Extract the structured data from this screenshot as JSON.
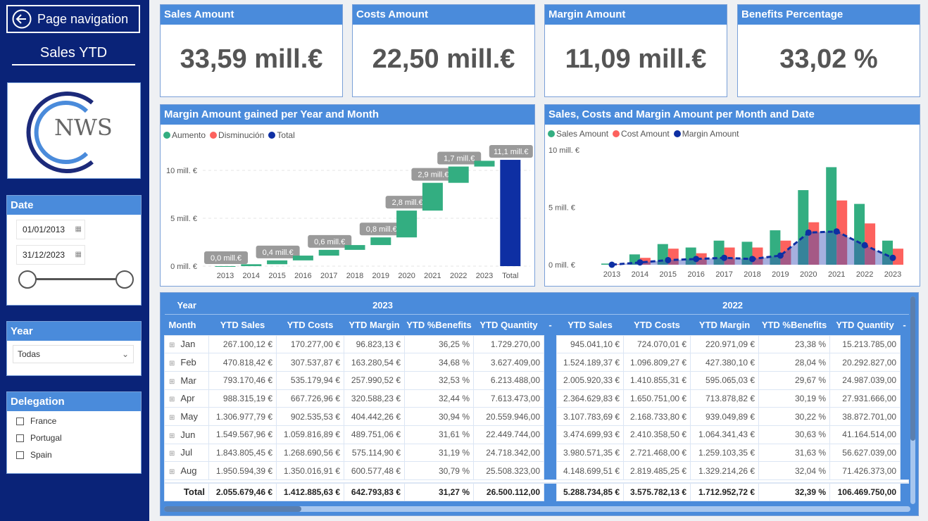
{
  "sidebar": {
    "nav_label": "Page navigation",
    "report_title": "Sales YTD",
    "logo_text": "NWS",
    "date": {
      "title": "Date",
      "start": "01/01/2013",
      "end": "31/12/2023",
      "range_fraction": [
        0,
        1
      ]
    },
    "year": {
      "title": "Year",
      "selected": "Todas"
    },
    "delegation": {
      "title": "Delegation",
      "options": [
        "France",
        "Portugal",
        "Spain"
      ]
    }
  },
  "kpis": [
    {
      "title": "Sales Amount",
      "value": "33,59 mill.€"
    },
    {
      "title": "Costs Amount",
      "value": "22,50 mill.€"
    },
    {
      "title": "Margin Amount",
      "value": "11,09 mill.€"
    },
    {
      "title": "Benefits Percentage",
      "value": "33,02 %"
    }
  ],
  "colors": {
    "sidebar": "#0a2378",
    "header": "#4a8bdb",
    "increase": "#33ae81",
    "decrease": "#fd625e",
    "total": "#0e2fa3"
  },
  "chart_data": [
    {
      "type": "waterfall",
      "title": "Margin Amount gained per Year and Month",
      "legend": [
        "Aumento",
        "Disminución",
        "Total"
      ],
      "legend_placement": "top-left",
      "categories": [
        "2013",
        "2014",
        "2015",
        "2016",
        "2017",
        "2018",
        "2019",
        "2020",
        "2021",
        "2022",
        "2023",
        "Total"
      ],
      "values": [
        0.0,
        0.2,
        0.4,
        0.5,
        0.6,
        0.5,
        0.8,
        2.8,
        2.9,
        1.7,
        0.6,
        11.1
      ],
      "data_labels": [
        "0,0 mill.€",
        null,
        "0,4 mill.€",
        null,
        "0,6 mill.€",
        null,
        "0,8 mill.€",
        "2,8 mill.€",
        "2,9 mill.€",
        "1,7 mill.€",
        null,
        "11,1 mill.€"
      ],
      "yticks": [
        "0 mill. €",
        "5 mill. €",
        "10 mill. €"
      ],
      "ylim": [
        0,
        12
      ],
      "unit": "mill. €",
      "grid": true
    },
    {
      "type": "bar+line",
      "title": "Sales, Costs and Margin Amount per Month and Date",
      "legend_placement": "top-left",
      "categories": [
        "2013",
        "2014",
        "2015",
        "2016",
        "2017",
        "2018",
        "2019",
        "2020",
        "2021",
        "2022",
        "2023"
      ],
      "series": [
        {
          "name": "Sales Amount",
          "type": "bar",
          "values": [
            0.1,
            0.9,
            1.8,
            1.5,
            2.1,
            2.0,
            3.0,
            6.5,
            8.5,
            5.3,
            2.1
          ]
        },
        {
          "name": "Cost Amount",
          "type": "bar",
          "values": [
            0.05,
            0.6,
            1.4,
            1.0,
            1.5,
            1.5,
            2.1,
            3.7,
            5.6,
            3.6,
            1.4
          ]
        },
        {
          "name": "Margin Amount",
          "type": "line-area",
          "values": [
            0.0,
            0.2,
            0.4,
            0.5,
            0.6,
            0.5,
            0.8,
            2.8,
            2.9,
            1.7,
            0.6
          ]
        }
      ],
      "yticks": [
        "0 mill. €",
        "5 mill. €",
        "10 mill. €"
      ],
      "ylim": [
        0,
        10
      ],
      "unit": "mill. €"
    }
  ],
  "table": {
    "row_header": "Year",
    "month_header": "Month",
    "years": [
      "2023",
      "2022"
    ],
    "columns": [
      "YTD Sales",
      "YTD Costs",
      "YTD Margin",
      "YTD %Benefits",
      "YTD Quantity",
      "-"
    ],
    "rows": [
      {
        "month": "Jan",
        "y2023": [
          "267.100,12 €",
          "170.277,00 €",
          "96.823,13 €",
          "36,25 %",
          "1.729.270,00"
        ],
        "y2022": [
          "945.041,10 €",
          "724.070,01 €",
          "220.971,09 €",
          "23,38 %",
          "15.213.785,00"
        ]
      },
      {
        "month": "Feb",
        "y2023": [
          "470.818,42 €",
          "307.537,87 €",
          "163.280,54 €",
          "34,68 %",
          "3.627.409,00"
        ],
        "y2022": [
          "1.524.189,37 €",
          "1.096.809,27 €",
          "427.380,10 €",
          "28,04 %",
          "20.292.827,00"
        ]
      },
      {
        "month": "Mar",
        "y2023": [
          "793.170,46 €",
          "535.179,94 €",
          "257.990,52 €",
          "32,53 %",
          "6.213.488,00"
        ],
        "y2022": [
          "2.005.920,33 €",
          "1.410.855,31 €",
          "595.065,03 €",
          "29,67 %",
          "24.987.039,00"
        ]
      },
      {
        "month": "Apr",
        "y2023": [
          "988.315,19 €",
          "667.726,96 €",
          "320.588,23 €",
          "32,44 %",
          "7.613.473,00"
        ],
        "y2022": [
          "2.364.629,83 €",
          "1.650.751,00 €",
          "713.878,82 €",
          "30,19 %",
          "27.931.666,00"
        ]
      },
      {
        "month": "May",
        "y2023": [
          "1.306.977,79 €",
          "902.535,53 €",
          "404.442,26 €",
          "30,94 %",
          "20.559.946,00"
        ],
        "y2022": [
          "3.107.783,69 €",
          "2.168.733,80 €",
          "939.049,89 €",
          "30,22 %",
          "38.872.701,00"
        ]
      },
      {
        "month": "Jun",
        "y2023": [
          "1.549.567,96 €",
          "1.059.816,89 €",
          "489.751,06 €",
          "31,61 %",
          "22.449.744,00"
        ],
        "y2022": [
          "3.474.699,93 €",
          "2.410.358,50 €",
          "1.064.341,43 €",
          "30,63 %",
          "41.164.514,00"
        ]
      },
      {
        "month": "Jul",
        "y2023": [
          "1.843.805,45 €",
          "1.268.690,56 €",
          "575.114,90 €",
          "31,19 %",
          "24.718.342,00"
        ],
        "y2022": [
          "3.980.571,35 €",
          "2.721.468,00 €",
          "1.259.103,35 €",
          "31,63 %",
          "56.627.039,00"
        ]
      },
      {
        "month": "Aug",
        "y2023": [
          "1.950.594,39 €",
          "1.350.016,91 €",
          "600.577,48 €",
          "30,79 %",
          "25.508.323,00"
        ],
        "y2022": [
          "4.148.699,51 €",
          "2.819.485,25 €",
          "1.329.214,26 €",
          "32,04 %",
          "71.426.373,00"
        ]
      }
    ],
    "total": {
      "label": "Total",
      "y2023": [
        "2.055.679,46 €",
        "1.412.885,63 €",
        "642.793,83 €",
        "31,27 %",
        "26.500.112,00"
      ],
      "y2022": [
        "5.288.734,85 €",
        "3.575.782,13 €",
        "1.712.952,72 €",
        "32,39 %",
        "106.469.750,00"
      ]
    }
  }
}
